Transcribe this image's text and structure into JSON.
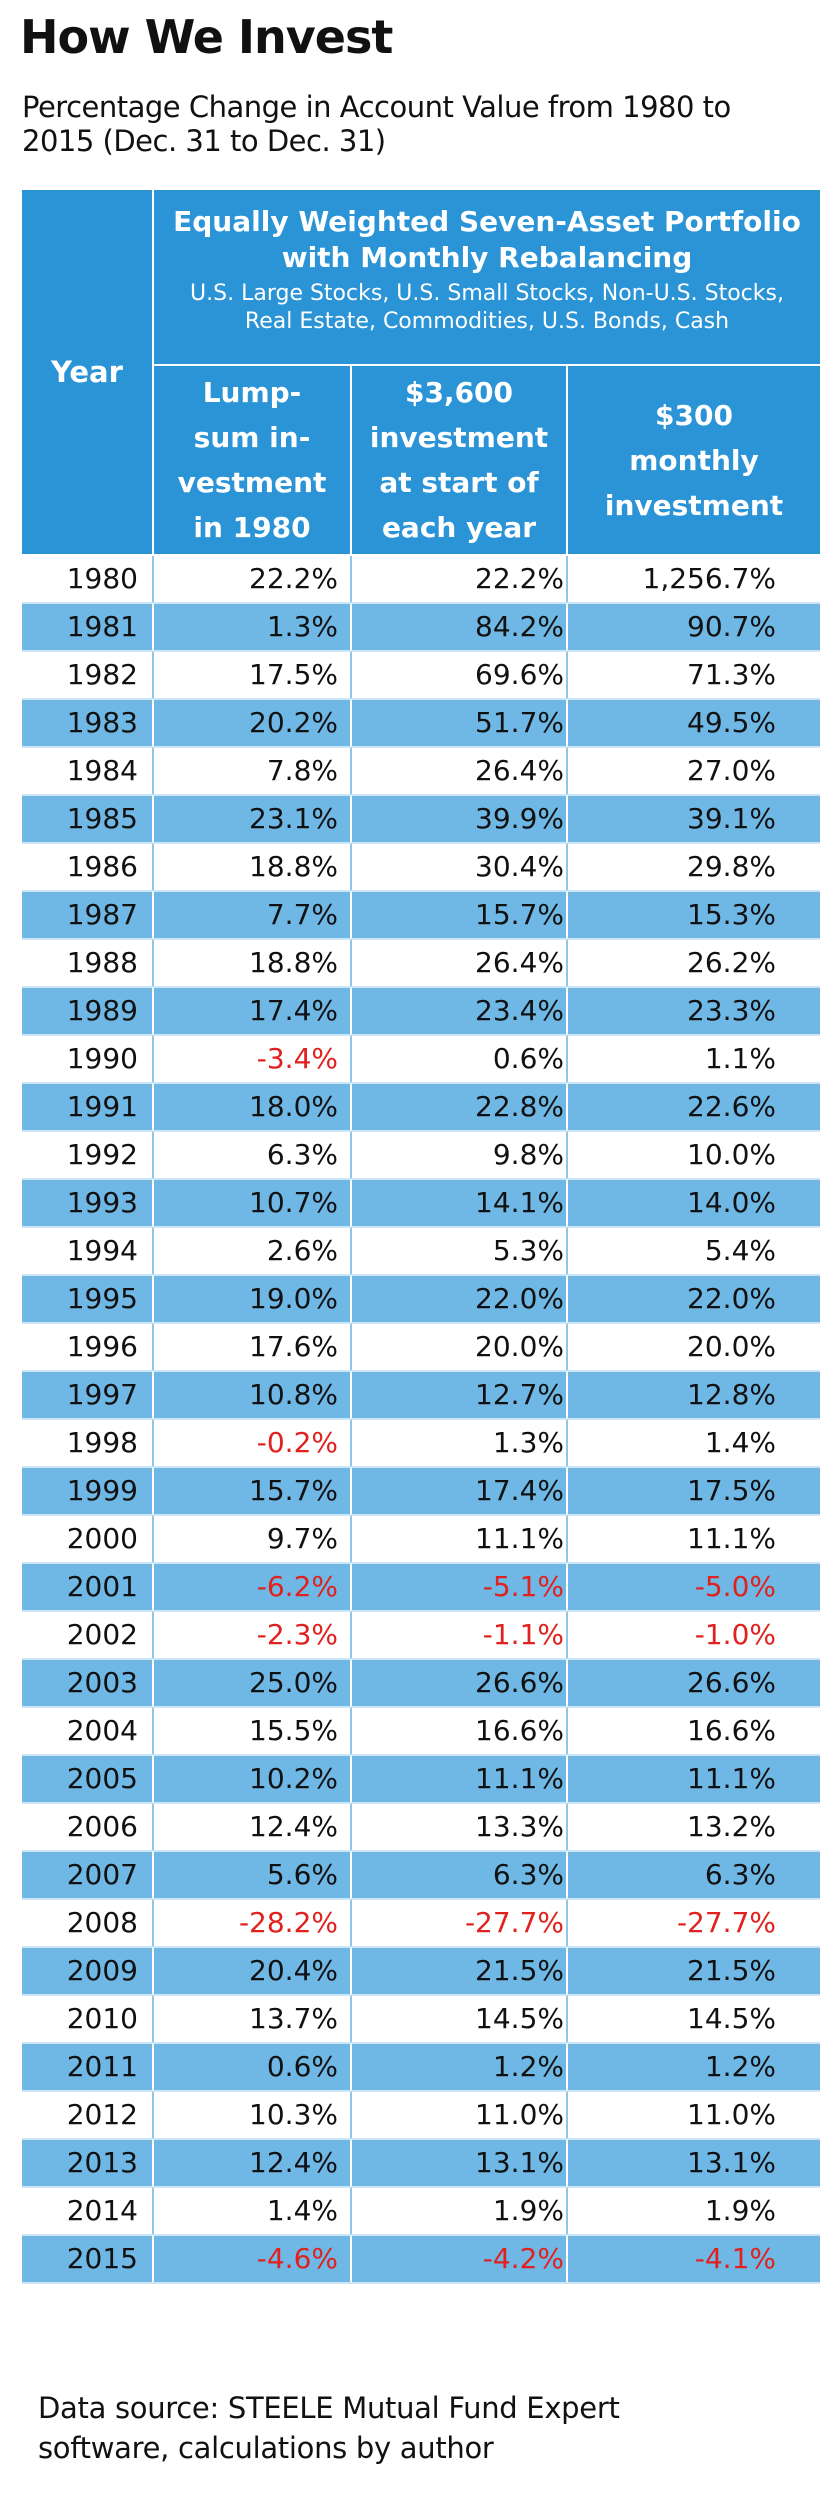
{
  "title": "How We Invest",
  "subtitle_lines": [
    "Percentage Change in Account Value from 1980 to",
    "2015 (Dec. 31 to Dec. 31)"
  ],
  "source_lines": [
    "Data source:  STEELE Mutual Fund Expert",
    "software, calculations by author"
  ],
  "chart_data": {
    "type": "table",
    "title": "How We Invest",
    "year_header": "Year",
    "group_header_lines": [
      "Equally Weighted Seven-Asset Portfolio",
      "with Monthly Rebalancing"
    ],
    "group_subheader_lines": [
      "U.S. Large Stocks, U.S. Small Stocks, Non-U.S. Stocks,",
      "Real Estate, Commodities, U.S. Bonds, Cash"
    ],
    "columns": [
      {
        "lines": [
          "Lump-",
          "sum in-",
          "vestment",
          "in 1980"
        ]
      },
      {
        "lines": [
          "$3,600",
          "investment",
          "at start of",
          "each year"
        ]
      },
      {
        "lines": [
          "$300",
          "monthly",
          "investment"
        ]
      }
    ],
    "negative_color": "#e0211d",
    "header_color": "#2b94d6",
    "alt_row_color": "#6fb8e6",
    "rows": [
      {
        "year": "1980",
        "values": [
          "22.2%",
          "22.2%",
          "1,256.7%"
        ]
      },
      {
        "year": "1981",
        "values": [
          "1.3%",
          "84.2%",
          "90.7%"
        ]
      },
      {
        "year": "1982",
        "values": [
          "17.5%",
          "69.6%",
          "71.3%"
        ]
      },
      {
        "year": "1983",
        "values": [
          "20.2%",
          "51.7%",
          "49.5%"
        ]
      },
      {
        "year": "1984",
        "values": [
          "7.8%",
          "26.4%",
          "27.0%"
        ]
      },
      {
        "year": "1985",
        "values": [
          "23.1%",
          "39.9%",
          "39.1%"
        ]
      },
      {
        "year": "1986",
        "values": [
          "18.8%",
          "30.4%",
          "29.8%"
        ]
      },
      {
        "year": "1987",
        "values": [
          "7.7%",
          "15.7%",
          "15.3%"
        ]
      },
      {
        "year": "1988",
        "values": [
          "18.8%",
          "26.4%",
          "26.2%"
        ]
      },
      {
        "year": "1989",
        "values": [
          "17.4%",
          "23.4%",
          "23.3%"
        ]
      },
      {
        "year": "1990",
        "values": [
          "-3.4%",
          "0.6%",
          "1.1%"
        ]
      },
      {
        "year": "1991",
        "values": [
          "18.0%",
          "22.8%",
          "22.6%"
        ]
      },
      {
        "year": "1992",
        "values": [
          "6.3%",
          "9.8%",
          "10.0%"
        ]
      },
      {
        "year": "1993",
        "values": [
          "10.7%",
          "14.1%",
          "14.0%"
        ]
      },
      {
        "year": "1994",
        "values": [
          "2.6%",
          "5.3%",
          "5.4%"
        ]
      },
      {
        "year": "1995",
        "values": [
          "19.0%",
          "22.0%",
          "22.0%"
        ]
      },
      {
        "year": "1996",
        "values": [
          "17.6%",
          "20.0%",
          "20.0%"
        ]
      },
      {
        "year": "1997",
        "values": [
          "10.8%",
          "12.7%",
          "12.8%"
        ]
      },
      {
        "year": "1998",
        "values": [
          "-0.2%",
          "1.3%",
          "1.4%"
        ]
      },
      {
        "year": "1999",
        "values": [
          "15.7%",
          "17.4%",
          "17.5%"
        ]
      },
      {
        "year": "2000",
        "values": [
          "9.7%",
          "11.1%",
          "11.1%"
        ]
      },
      {
        "year": "2001",
        "values": [
          "-6.2%",
          "-5.1%",
          "-5.0%"
        ]
      },
      {
        "year": "2002",
        "values": [
          "-2.3%",
          "-1.1%",
          "-1.0%"
        ]
      },
      {
        "year": "2003",
        "values": [
          "25.0%",
          "26.6%",
          "26.6%"
        ]
      },
      {
        "year": "2004",
        "values": [
          "15.5%",
          "16.6%",
          "16.6%"
        ]
      },
      {
        "year": "2005",
        "values": [
          "10.2%",
          "11.1%",
          "11.1%"
        ]
      },
      {
        "year": "2006",
        "values": [
          "12.4%",
          "13.3%",
          "13.2%"
        ]
      },
      {
        "year": "2007",
        "values": [
          "5.6%",
          "6.3%",
          "6.3%"
        ]
      },
      {
        "year": "2008",
        "values": [
          "-28.2%",
          "-27.7%",
          "-27.7%"
        ]
      },
      {
        "year": "2009",
        "values": [
          "20.4%",
          "21.5%",
          "21.5%"
        ]
      },
      {
        "year": "2010",
        "values": [
          "13.7%",
          "14.5%",
          "14.5%"
        ]
      },
      {
        "year": "2011",
        "values": [
          "0.6%",
          "1.2%",
          "1.2%"
        ]
      },
      {
        "year": "2012",
        "values": [
          "10.3%",
          "11.0%",
          "11.0%"
        ]
      },
      {
        "year": "2013",
        "values": [
          "12.4%",
          "13.1%",
          "13.1%"
        ]
      },
      {
        "year": "2014",
        "values": [
          "1.4%",
          "1.9%",
          "1.9%"
        ]
      },
      {
        "year": "2015",
        "values": [
          "-4.6%",
          "-4.2%",
          "-4.1%"
        ]
      }
    ]
  }
}
